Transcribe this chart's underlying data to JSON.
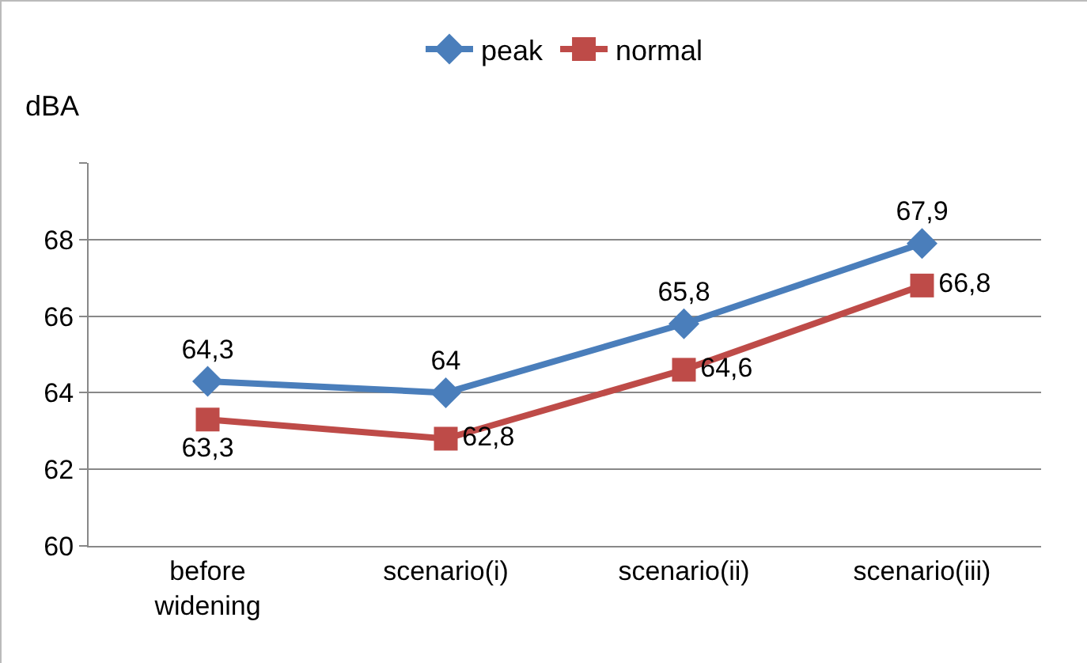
{
  "chart_data": {
    "type": "line",
    "ylabel": "dBA",
    "categories": [
      "before widening",
      "scenario(i)",
      "scenario(ii)",
      "scenario(iii)"
    ],
    "series": [
      {
        "name": "peak",
        "color": "#4a7ebb",
        "marker": "diamond",
        "values": [
          64.3,
          64,
          65.8,
          67.9
        ],
        "value_labels": [
          "64,3",
          "64",
          "65,8",
          "67,9"
        ]
      },
      {
        "name": "normal",
        "color": "#be4b48",
        "marker": "square",
        "values": [
          63.3,
          62.8,
          64.6,
          66.8
        ],
        "value_labels": [
          "63,3",
          "62,8",
          "64,6",
          "66,8"
        ]
      }
    ],
    "ylim": [
      60,
      70
    ],
    "yticks": [
      60,
      62,
      64,
      66,
      68,
      {
        "value": 70,
        "label": null
      }
    ],
    "grid": "y",
    "legend": "top",
    "line_style": "solid"
  }
}
